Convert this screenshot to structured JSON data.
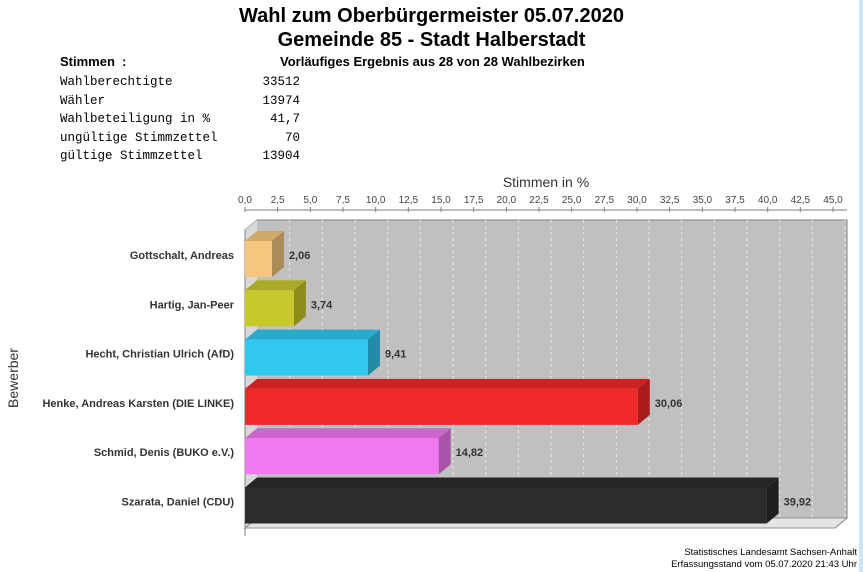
{
  "header": {
    "title1": "Wahl zum Oberbürgermeister 05.07.2020",
    "title2": "Gemeinde 85 - Stadt Halberstadt",
    "stimmen_label": "Stimmen  :",
    "subtitle": "Vorläufiges Ergebnis aus 28 von 28 Wahlbezirken"
  },
  "stats": [
    {
      "label": "Wahlberechtigte",
      "value": "33512"
    },
    {
      "label": "Wähler",
      "value": "13974"
    },
    {
      "label": "Wahlbeteiligung in %",
      "value": "41,7"
    },
    {
      "label": "ungültige Stimmzettel",
      "value": "70"
    },
    {
      "label": "gültige Stimmzettel",
      "value": "13904"
    }
  ],
  "footer": {
    "line1": "Statistisches Landesamt Sachsen-Anhalt",
    "line2": "Erfassungsstand vom 05.07.2020 21:43 Uhr"
  },
  "chart_data": {
    "type": "bar",
    "orientation": "horizontal",
    "xlabel": "Stimmen in %",
    "ylabel": "Bewerber",
    "xlim": [
      0,
      45
    ],
    "ticks": [
      "0,0",
      "2,5",
      "5,0",
      "7,5",
      "10,0",
      "12,5",
      "15,0",
      "17,5",
      "20,0",
      "22,5",
      "25,0",
      "27,5",
      "30,0",
      "32,5",
      "35,0",
      "37,5",
      "40,0",
      "42,5",
      "45,0"
    ],
    "categories": [
      "Gottschalt, Andreas",
      "Hartig, Jan-Peer",
      "Hecht, Christian Ulrich (AfD)",
      "Henke, Andreas Karsten (DIE LINKE)",
      "Schmid, Denis (BUKO e.V.)",
      "Szarata, Daniel (CDU)"
    ],
    "values": [
      2.06,
      3.74,
      9.41,
      30.06,
      14.82,
      39.92
    ],
    "labels": [
      "2,06",
      "3,74",
      "9,41",
      "30,06",
      "14,82",
      "39,92"
    ],
    "colors": [
      "#f4c67e",
      "#c8c82a",
      "#30c8f0",
      "#f02828",
      "#f078f0",
      "#2c2c2c"
    ]
  }
}
